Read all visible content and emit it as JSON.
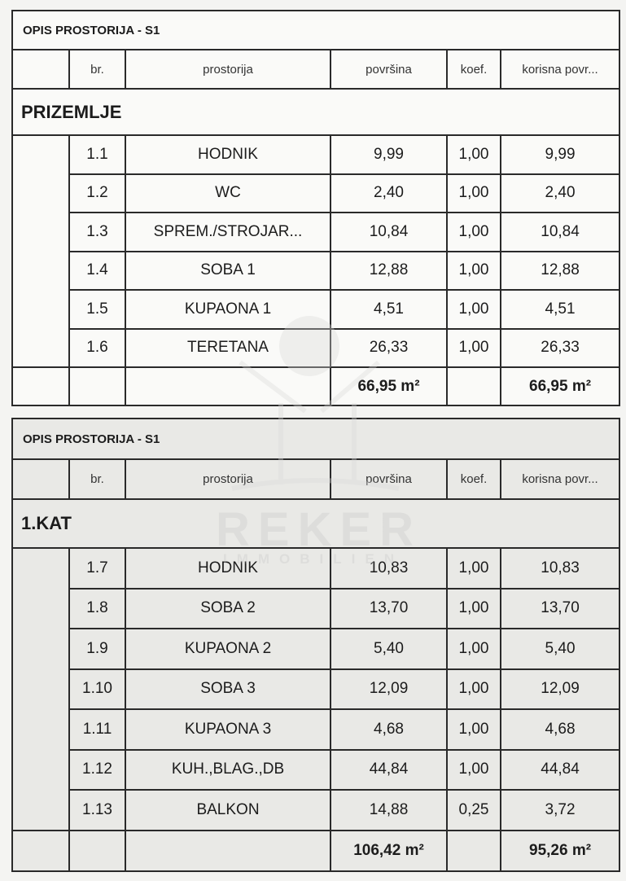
{
  "tables": [
    {
      "title": "OPIS PROSTORIJA - S1",
      "headers": [
        "",
        "br.",
        "prostorija",
        "površina",
        "koef.",
        "korisna povr..."
      ],
      "section": "PRIZEMLJE",
      "rows": [
        {
          "br": "1.1",
          "name": "HODNIK",
          "area": "9,99",
          "coef": "1,00",
          "useful": "9,99"
        },
        {
          "br": "1.2",
          "name": "WC",
          "area": "2,40",
          "coef": "1,00",
          "useful": "2,40"
        },
        {
          "br": "1.3",
          "name": "SPREM./STROJAR...",
          "area": "10,84",
          "coef": "1,00",
          "useful": "10,84"
        },
        {
          "br": "1.4",
          "name": "SOBA 1",
          "area": "12,88",
          "coef": "1,00",
          "useful": "12,88"
        },
        {
          "br": "1.5",
          "name": "KUPAONA 1",
          "area": "4,51",
          "coef": "1,00",
          "useful": "4,51"
        },
        {
          "br": "1.6",
          "name": "TERETANA",
          "area": "26,33",
          "coef": "1,00",
          "useful": "26,33"
        }
      ],
      "total_area": "66,95 m²",
      "total_useful": "66,95 m²"
    },
    {
      "title": "OPIS PROSTORIJA - S1",
      "headers": [
        "",
        "br.",
        "prostorija",
        "površina",
        "koef.",
        "korisna povr..."
      ],
      "section": "1.KAT",
      "rows": [
        {
          "br": "1.7",
          "name": "HODNIK",
          "area": "10,83",
          "coef": "1,00",
          "useful": "10,83"
        },
        {
          "br": "1.8",
          "name": "SOBA 2",
          "area": "13,70",
          "coef": "1,00",
          "useful": "13,70"
        },
        {
          "br": "1.9",
          "name": "KUPAONA 2",
          "area": "5,40",
          "coef": "1,00",
          "useful": "5,40"
        },
        {
          "br": "1.10",
          "name": "SOBA 3",
          "area": "12,09",
          "coef": "1,00",
          "useful": "12,09"
        },
        {
          "br": "1.11",
          "name": "KUPAONA 3",
          "area": "4,68",
          "coef": "1,00",
          "useful": "4,68"
        },
        {
          "br": "1.12",
          "name": "KUH.,BLAG.,DB",
          "area": "44,84",
          "coef": "1,00",
          "useful": "44,84"
        },
        {
          "br": "1.13",
          "name": "BALKON",
          "area": "14,88",
          "coef": "0,25",
          "useful": "3,72"
        }
      ],
      "total_area": "106,42 m²",
      "total_useful": "95,26 m²"
    }
  ],
  "watermark": {
    "brand": "REKER",
    "sub": "IMMOBILIEN"
  }
}
